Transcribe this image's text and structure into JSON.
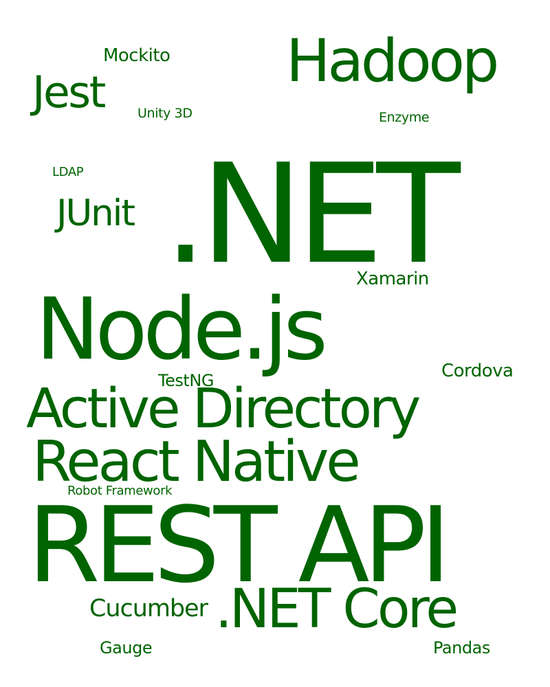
{
  "word_cloud": {
    "color": "#006400",
    "background": "#ffffff",
    "words": [
      {
        "id": "net",
        "text": ".NET"
      },
      {
        "id": "rest_api",
        "text": "REST API"
      },
      {
        "id": "nodejs",
        "text": "Node.js"
      },
      {
        "id": "active_directory",
        "text": "Active Directory"
      },
      {
        "id": "react_native",
        "text": "React Native"
      },
      {
        "id": "hadoop",
        "text": "Hadoop"
      },
      {
        "id": "net_core",
        "text": ".NET Core"
      },
      {
        "id": "jest",
        "text": "Jest"
      },
      {
        "id": "junit",
        "text": "JUnit"
      },
      {
        "id": "cucumber",
        "text": "Cucumber"
      },
      {
        "id": "mockito",
        "text": "Mockito"
      },
      {
        "id": "xamarin",
        "text": "Xamarin"
      },
      {
        "id": "cordova",
        "text": "Cordova"
      },
      {
        "id": "testng",
        "text": "TestNG"
      },
      {
        "id": "gauge",
        "text": "Gauge"
      },
      {
        "id": "pandas",
        "text": "Pandas"
      },
      {
        "id": "unity_3d",
        "text": "Unity 3D"
      },
      {
        "id": "enzyme",
        "text": "Enzyme"
      },
      {
        "id": "ldap",
        "text": "LDAP"
      },
      {
        "id": "robot_framework",
        "text": "Robot Framework"
      }
    ]
  }
}
